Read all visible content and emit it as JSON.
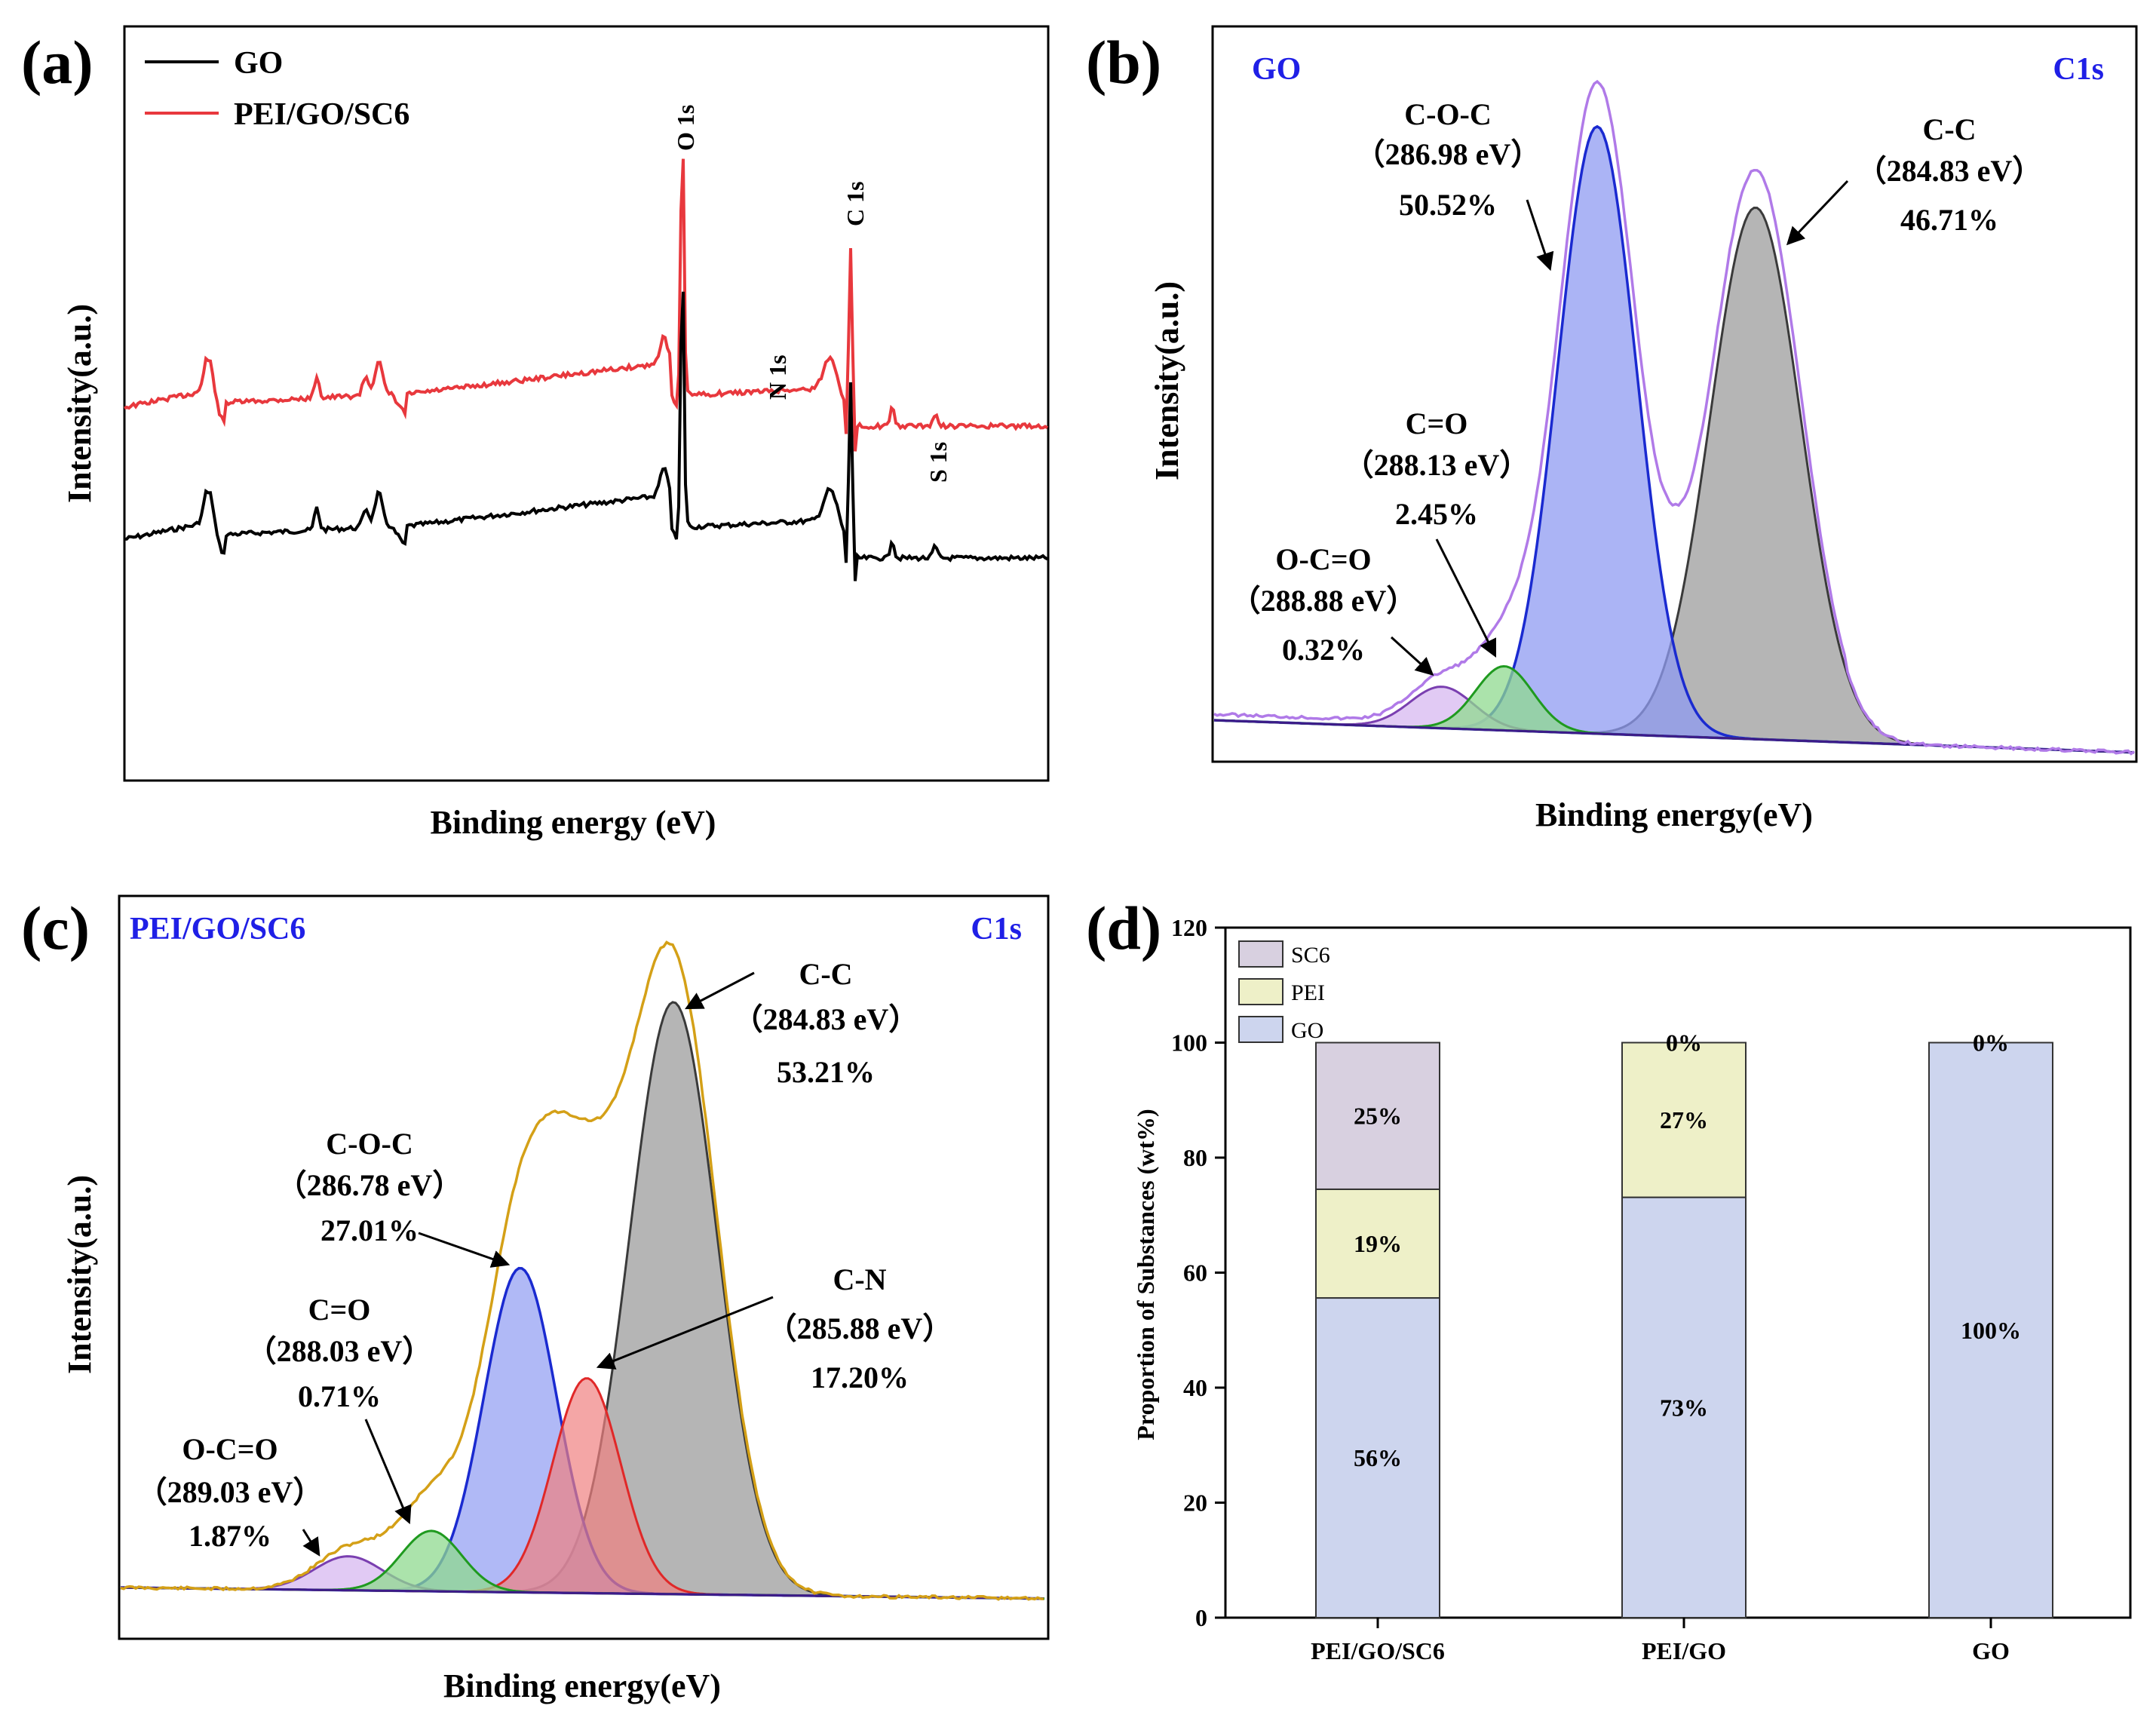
{
  "chart_data": [
    {
      "panel": "(a)",
      "type": "line",
      "xlabel": "Binding energy (eV)",
      "ylabel": "Intensity(a.u.)",
      "legend": [
        {
          "name": "GO",
          "color": "#000000"
        },
        {
          "name": "PEI/GO/SC6",
          "color": "#e8383d"
        }
      ],
      "peak_labels": [
        "O 1s",
        "N 1s",
        "C 1s",
        "S 1s"
      ]
    },
    {
      "panel": "(b)",
      "type": "line",
      "sample": "GO",
      "region": "C1s",
      "xlabel": "Binding energy(eV)",
      "ylabel": "Intensity(a.u.)",
      "peaks": [
        {
          "name": "C-O-C",
          "energy": "（286.98 eV）",
          "percent": "50.52%"
        },
        {
          "name": "C-C",
          "energy": "（284.83 eV）",
          "percent": "46.71%"
        },
        {
          "name": "C=O",
          "energy": "（288.13 eV）",
          "percent": "2.45%"
        },
        {
          "name": "O-C=O",
          "energy": "（288.88 eV）",
          "percent": "0.32%"
        }
      ]
    },
    {
      "panel": "(c)",
      "type": "line",
      "sample": "PEI/GO/SC6",
      "region": "C1s",
      "xlabel": "Binding energy(eV)",
      "ylabel": "Intensity(a.u.)",
      "peaks": [
        {
          "name": "C-C",
          "energy": "（284.83 eV）",
          "percent": "53.21%"
        },
        {
          "name": "C-O-C",
          "energy": "（286.78 eV）",
          "percent": "27.01%"
        },
        {
          "name": "C-N",
          "energy": "（285.88 eV）",
          "percent": "17.20%"
        },
        {
          "name": "C=O",
          "energy": "（288.03 eV）",
          "percent": "0.71%"
        },
        {
          "name": "O-C=O",
          "energy": "（289.03 eV）",
          "percent": "1.87%"
        }
      ]
    },
    {
      "panel": "(d)",
      "type": "bar",
      "stacked": true,
      "ylabel": "Proportion of Substances (wt%)",
      "ylim": [
        0,
        120
      ],
      "yticks": [
        0,
        20,
        40,
        60,
        80,
        100,
        120
      ],
      "categories": [
        "PEI/GO/SC6",
        "PEI/GO",
        "GO"
      ],
      "series": [
        {
          "name": "GO",
          "color": "#cdd5ee",
          "values": [
            55.6,
            73.1,
            100
          ],
          "labels": [
            "56%",
            "73%",
            "100%"
          ]
        },
        {
          "name": "PEI",
          "color": "#eef0c8",
          "values": [
            18.9,
            26.9,
            0
          ],
          "labels": [
            "19%",
            "27%",
            ""
          ]
        },
        {
          "name": "SC6",
          "color": "#d8d0e0",
          "values": [
            25.5,
            0,
            0
          ],
          "labels": [
            "25%",
            "0%",
            "0%"
          ]
        }
      ],
      "legend_order": [
        "SC6",
        "PEI",
        "GO"
      ]
    }
  ]
}
